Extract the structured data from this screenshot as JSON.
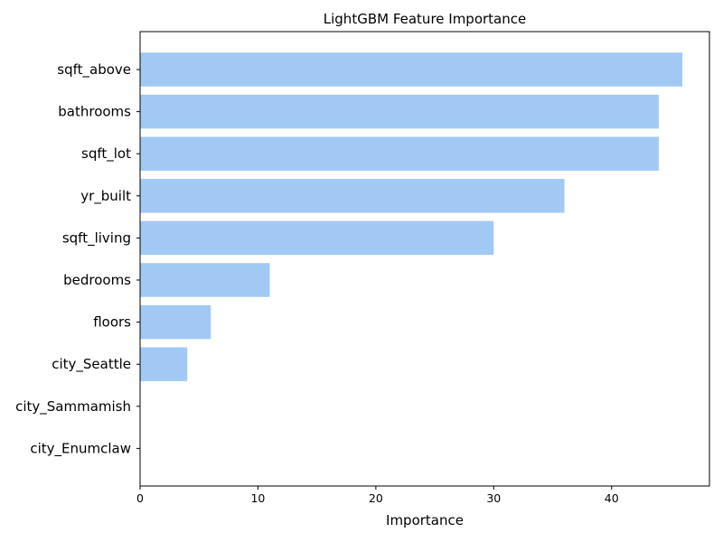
{
  "chart_data": {
    "type": "bar",
    "orientation": "horizontal",
    "title": "LightGBM Feature Importance",
    "xlabel": "Importance",
    "ylabel": "",
    "categories": [
      "sqft_above",
      "bathrooms",
      "sqft_lot",
      "yr_built",
      "sqft_living",
      "bedrooms",
      "floors",
      "city_Seattle",
      "city_Sammamish",
      "city_Enumclaw"
    ],
    "values": [
      46,
      44,
      44,
      36,
      30,
      11,
      6,
      4,
      0,
      0
    ],
    "xlim": [
      0,
      48.3
    ],
    "xticks": [
      0,
      10,
      20,
      30,
      40
    ],
    "bar_color": "#a1c9f4",
    "grid": false,
    "legend": "none"
  }
}
